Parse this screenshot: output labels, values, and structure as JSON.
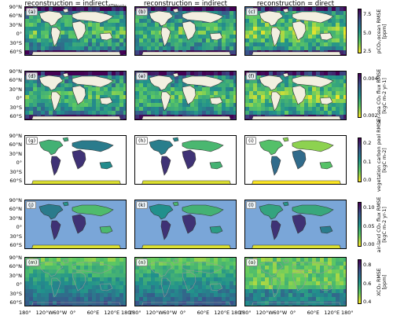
{
  "columns": [
    {
      "title": "reconstruction = indirect",
      "subscript": "ATMonly"
    },
    {
      "title": "reconstruction = indirect",
      "subscript": ""
    },
    {
      "title": "reconstruction = direct",
      "subscript": ""
    }
  ],
  "panel_labels": [
    "(a)",
    "(b)",
    "(c)",
    "(d)",
    "(e)",
    "(f)",
    "(g)",
    "(h)",
    "(i)",
    "(j)",
    "(k)",
    "(l)",
    "(m)",
    "(n)",
    "(o)"
  ],
  "lat_ticks": [
    "90°N",
    "60°N",
    "30°N",
    "0°",
    "30°S",
    "60°S"
  ],
  "lon_ticks": [
    "180°",
    "120°W",
    "60°W",
    "0°",
    "60°E",
    "120°E",
    "180°"
  ],
  "rows": [
    {
      "label_line1": "pCO₂,ocean RMSE",
      "label_line2": "[ppm]",
      "ticks": [
        "7.5",
        "5.0",
        "2.5"
      ],
      "palette": "ocean"
    },
    {
      "label_line1": "air-sea CO₂ flux RMSE",
      "label_line2": "[kgC m-2 yr-1]",
      "ticks": [
        "0.004",
        "0.002"
      ],
      "palette": "ocean"
    },
    {
      "label_line1": "vegetation carbon pool RMSE",
      "label_line2": "[kgC m-2]",
      "ticks": [
        "0.2",
        "0.1",
        "0.0"
      ],
      "palette": "land"
    },
    {
      "label_line1": "air-land CO₂ flux RMSE",
      "label_line2": "[kgC m-2 yr-1]",
      "ticks": [
        "0.10",
        "0.05",
        "0.00"
      ],
      "palette": "land"
    },
    {
      "label_line1": "XCO₂ RMSE",
      "label_line2": "[ppm]",
      "ticks": [
        "0.8",
        "0.6",
        "0.4"
      ],
      "palette": "atm"
    }
  ],
  "colors": {
    "viridis_dark": "#440154",
    "viridis_mid": "#21918c",
    "viridis_light": "#fde725",
    "land_blank": "#f2efe0",
    "ocean_blue": "#7aa6d8"
  }
}
